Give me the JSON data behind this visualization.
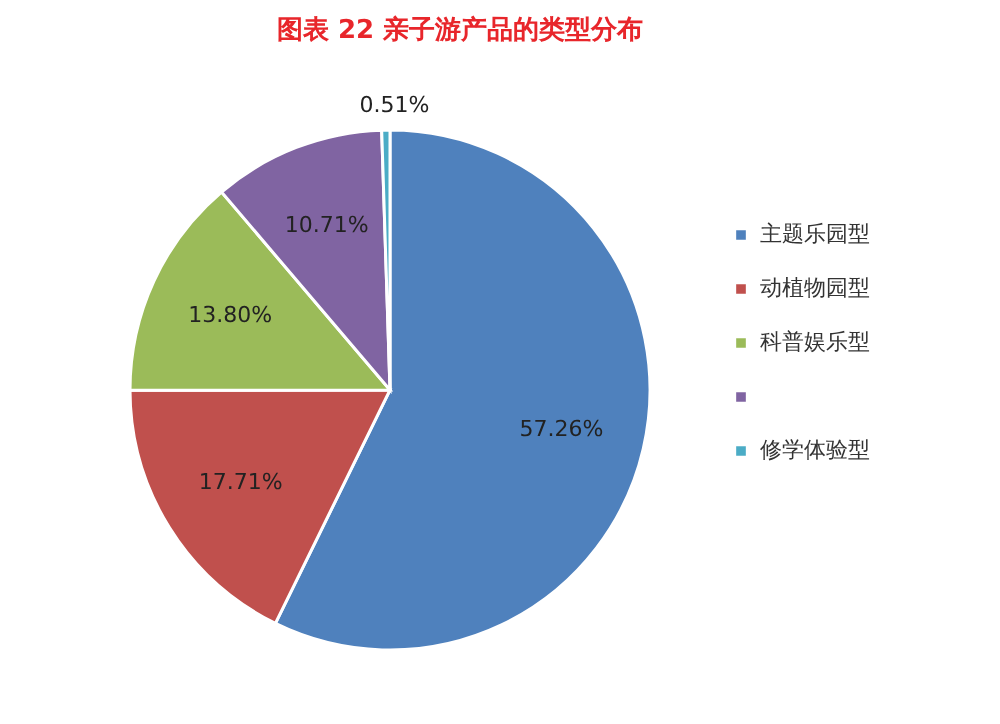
{
  "chart_data": {
    "type": "pie",
    "title": "图表  22  亲子游产品的类型分布",
    "categories": [
      "主题乐园型",
      "动植物园型",
      "科普娱乐型",
      null,
      "修学体验型"
    ],
    "values": [
      57.26,
      17.71,
      13.8,
      10.71,
      0.51
    ],
    "colors": [
      "#4f81bd",
      "#c0504d",
      "#9bbb59",
      "#8064a2",
      "#4bacc6"
    ],
    "value_labels": [
      "57.26%",
      "17.71%",
      "13.80%",
      "10.71%",
      "0.51%"
    ],
    "legend": "right"
  }
}
